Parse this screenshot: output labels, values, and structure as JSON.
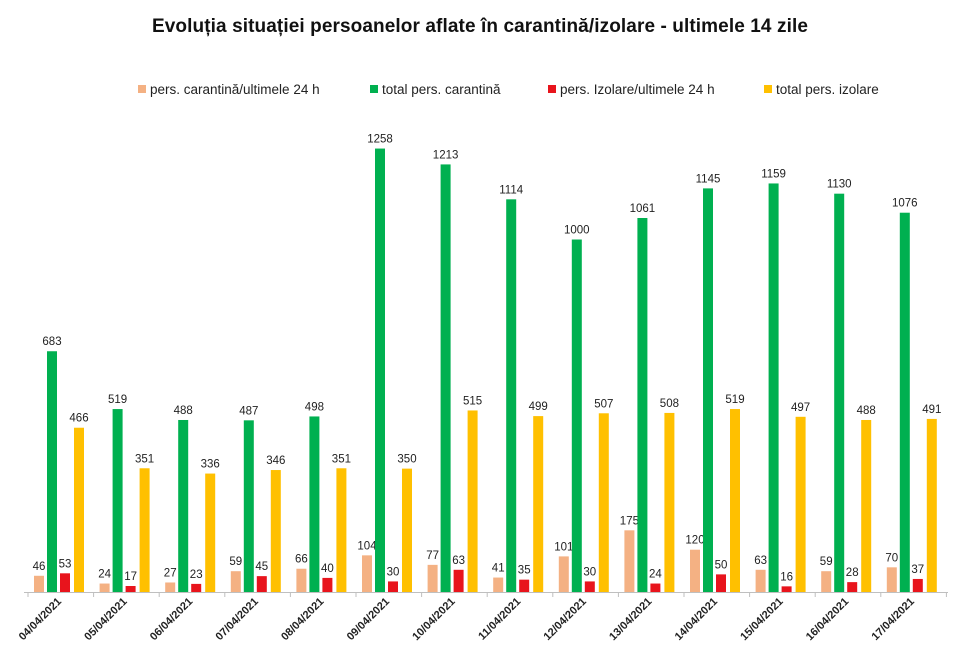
{
  "chart_data": {
    "type": "bar",
    "title": "Evoluția situației persoanelor aflate în carantină/izolare - ultimele 14 zile",
    "xlabel": "",
    "ylabel": "",
    "ylim": [
      0,
      1300
    ],
    "grid": false,
    "legend_position": "top",
    "categories": [
      "04/04/2021",
      "05/04/2021",
      "06/04/2021",
      "07/04/2021",
      "08/04/2021",
      "09/04/2021",
      "10/04/2021",
      "11/04/2021",
      "12/04/2021",
      "13/04/2021",
      "14/04/2021",
      "15/04/2021",
      "16/04/2021",
      "17/04/2021"
    ],
    "series": [
      {
        "name": "pers. carantină/ultimele 24 h",
        "color": "#f4b183",
        "values": [
          46,
          24,
          27,
          59,
          66,
          104,
          77,
          41,
          101,
          175,
          120,
          63,
          59,
          70
        ]
      },
      {
        "name": "total pers. carantină",
        "color": "#00b050",
        "values": [
          683,
          519,
          488,
          487,
          498,
          1258,
          1213,
          1114,
          1000,
          1061,
          1145,
          1159,
          1130,
          1076
        ]
      },
      {
        "name": "pers. Izolare/ultimele 24 h",
        "color": "#e8141c",
        "values": [
          53,
          17,
          23,
          45,
          40,
          30,
          63,
          35,
          30,
          24,
          50,
          16,
          28,
          37
        ]
      },
      {
        "name": "total pers. izolare",
        "color": "#ffc000",
        "values": [
          466,
          351,
          336,
          346,
          351,
          350,
          515,
          499,
          507,
          508,
          519,
          497,
          488,
          491
        ]
      }
    ]
  }
}
